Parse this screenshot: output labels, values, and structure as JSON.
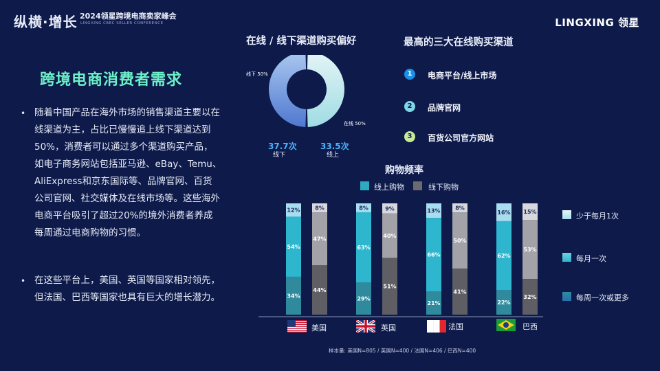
{
  "header": {
    "brand": "纵横·增长",
    "event_title": "2024领星跨境电商卖家峰会",
    "event_subtitle": "LINGXING CBEC SELLER CONFERENCE",
    "logo": "LINGXING 领星"
  },
  "left": {
    "title": "跨境电商消费者需求",
    "bullets": [
      [
        "随着中国产品在海外市场的销售渠道主要以在",
        "线渠道为主，占比已慢慢追上线下渠道达到",
        "50%，消费者可以通过多个渠道购买产品，",
        "如电子商务网站包括亚马逊、eBay、Temu、",
        "AliExpress和京东国际等、品牌官网、百货",
        "公司官网、社交媒体及在线市场等。这些海外",
        "电商平台吸引了超过20%的境外消费者养成",
        "每周通过电商购物的习惯。"
      ],
      [
        "在这些平台上，美国、英国等国家相对领先，",
        "但法国、巴西等国家也具有巨大的增长潜力。"
      ]
    ]
  },
  "donut": {
    "heading": "在线 / 线下渠道购买偏好",
    "slices": [
      {
        "label": "线下 50%",
        "value": 50,
        "color": "#6d9bd6"
      },
      {
        "label": "在线 50%",
        "value": 50,
        "color": "#c9eef0"
      }
    ],
    "stats": [
      {
        "value": "37.7次",
        "label": "线下"
      },
      {
        "value": "33.5次",
        "label": "线上"
      }
    ]
  },
  "top3": {
    "heading": "最高的三大在线购买渠道",
    "items": [
      {
        "num": "1",
        "label": "电商平台/线上市场",
        "color": "#1c8fe6"
      },
      {
        "num": "2",
        "label": "品牌官网",
        "color": "#7fd6e6"
      },
      {
        "num": "3",
        "label": "百货公司官方网站",
        "color": "#c6ea9a"
      }
    ]
  },
  "chart_data": {
    "type": "bar",
    "title": "购物频率",
    "stacked": true,
    "legend_top": [
      "线上购物",
      "线下购物"
    ],
    "legend_right": [
      "少于每月1次",
      "每月一次",
      "每周一次或更多"
    ],
    "categories": [
      "美国",
      "英国",
      "法国",
      "巴西"
    ],
    "online": {
      "less_than_monthly": [
        12,
        8,
        13,
        16
      ],
      "monthly": [
        54,
        63,
        66,
        62
      ],
      "weekly_or_more": [
        34,
        29,
        21,
        22
      ]
    },
    "offline": {
      "less_than_monthly": [
        8,
        9,
        8,
        15
      ],
      "monthly": [
        47,
        40,
        50,
        53
      ],
      "weekly_or_more": [
        44,
        51,
        41,
        32
      ]
    },
    "colors": {
      "online_top": "#a8dcef",
      "online_mid": "#2fb6cf",
      "online_bot": "#2f8a9e",
      "offline_top": "#d8d8dc",
      "offline_mid": "#a2a2a8",
      "offline_bot": "#5e5e64",
      "legend_online": "#2fa9c0",
      "legend_offline": "#6a6a70"
    },
    "note": "样本量: 美国N=805 / 英国N=400 / 法国N=406 / 巴西N=400"
  }
}
